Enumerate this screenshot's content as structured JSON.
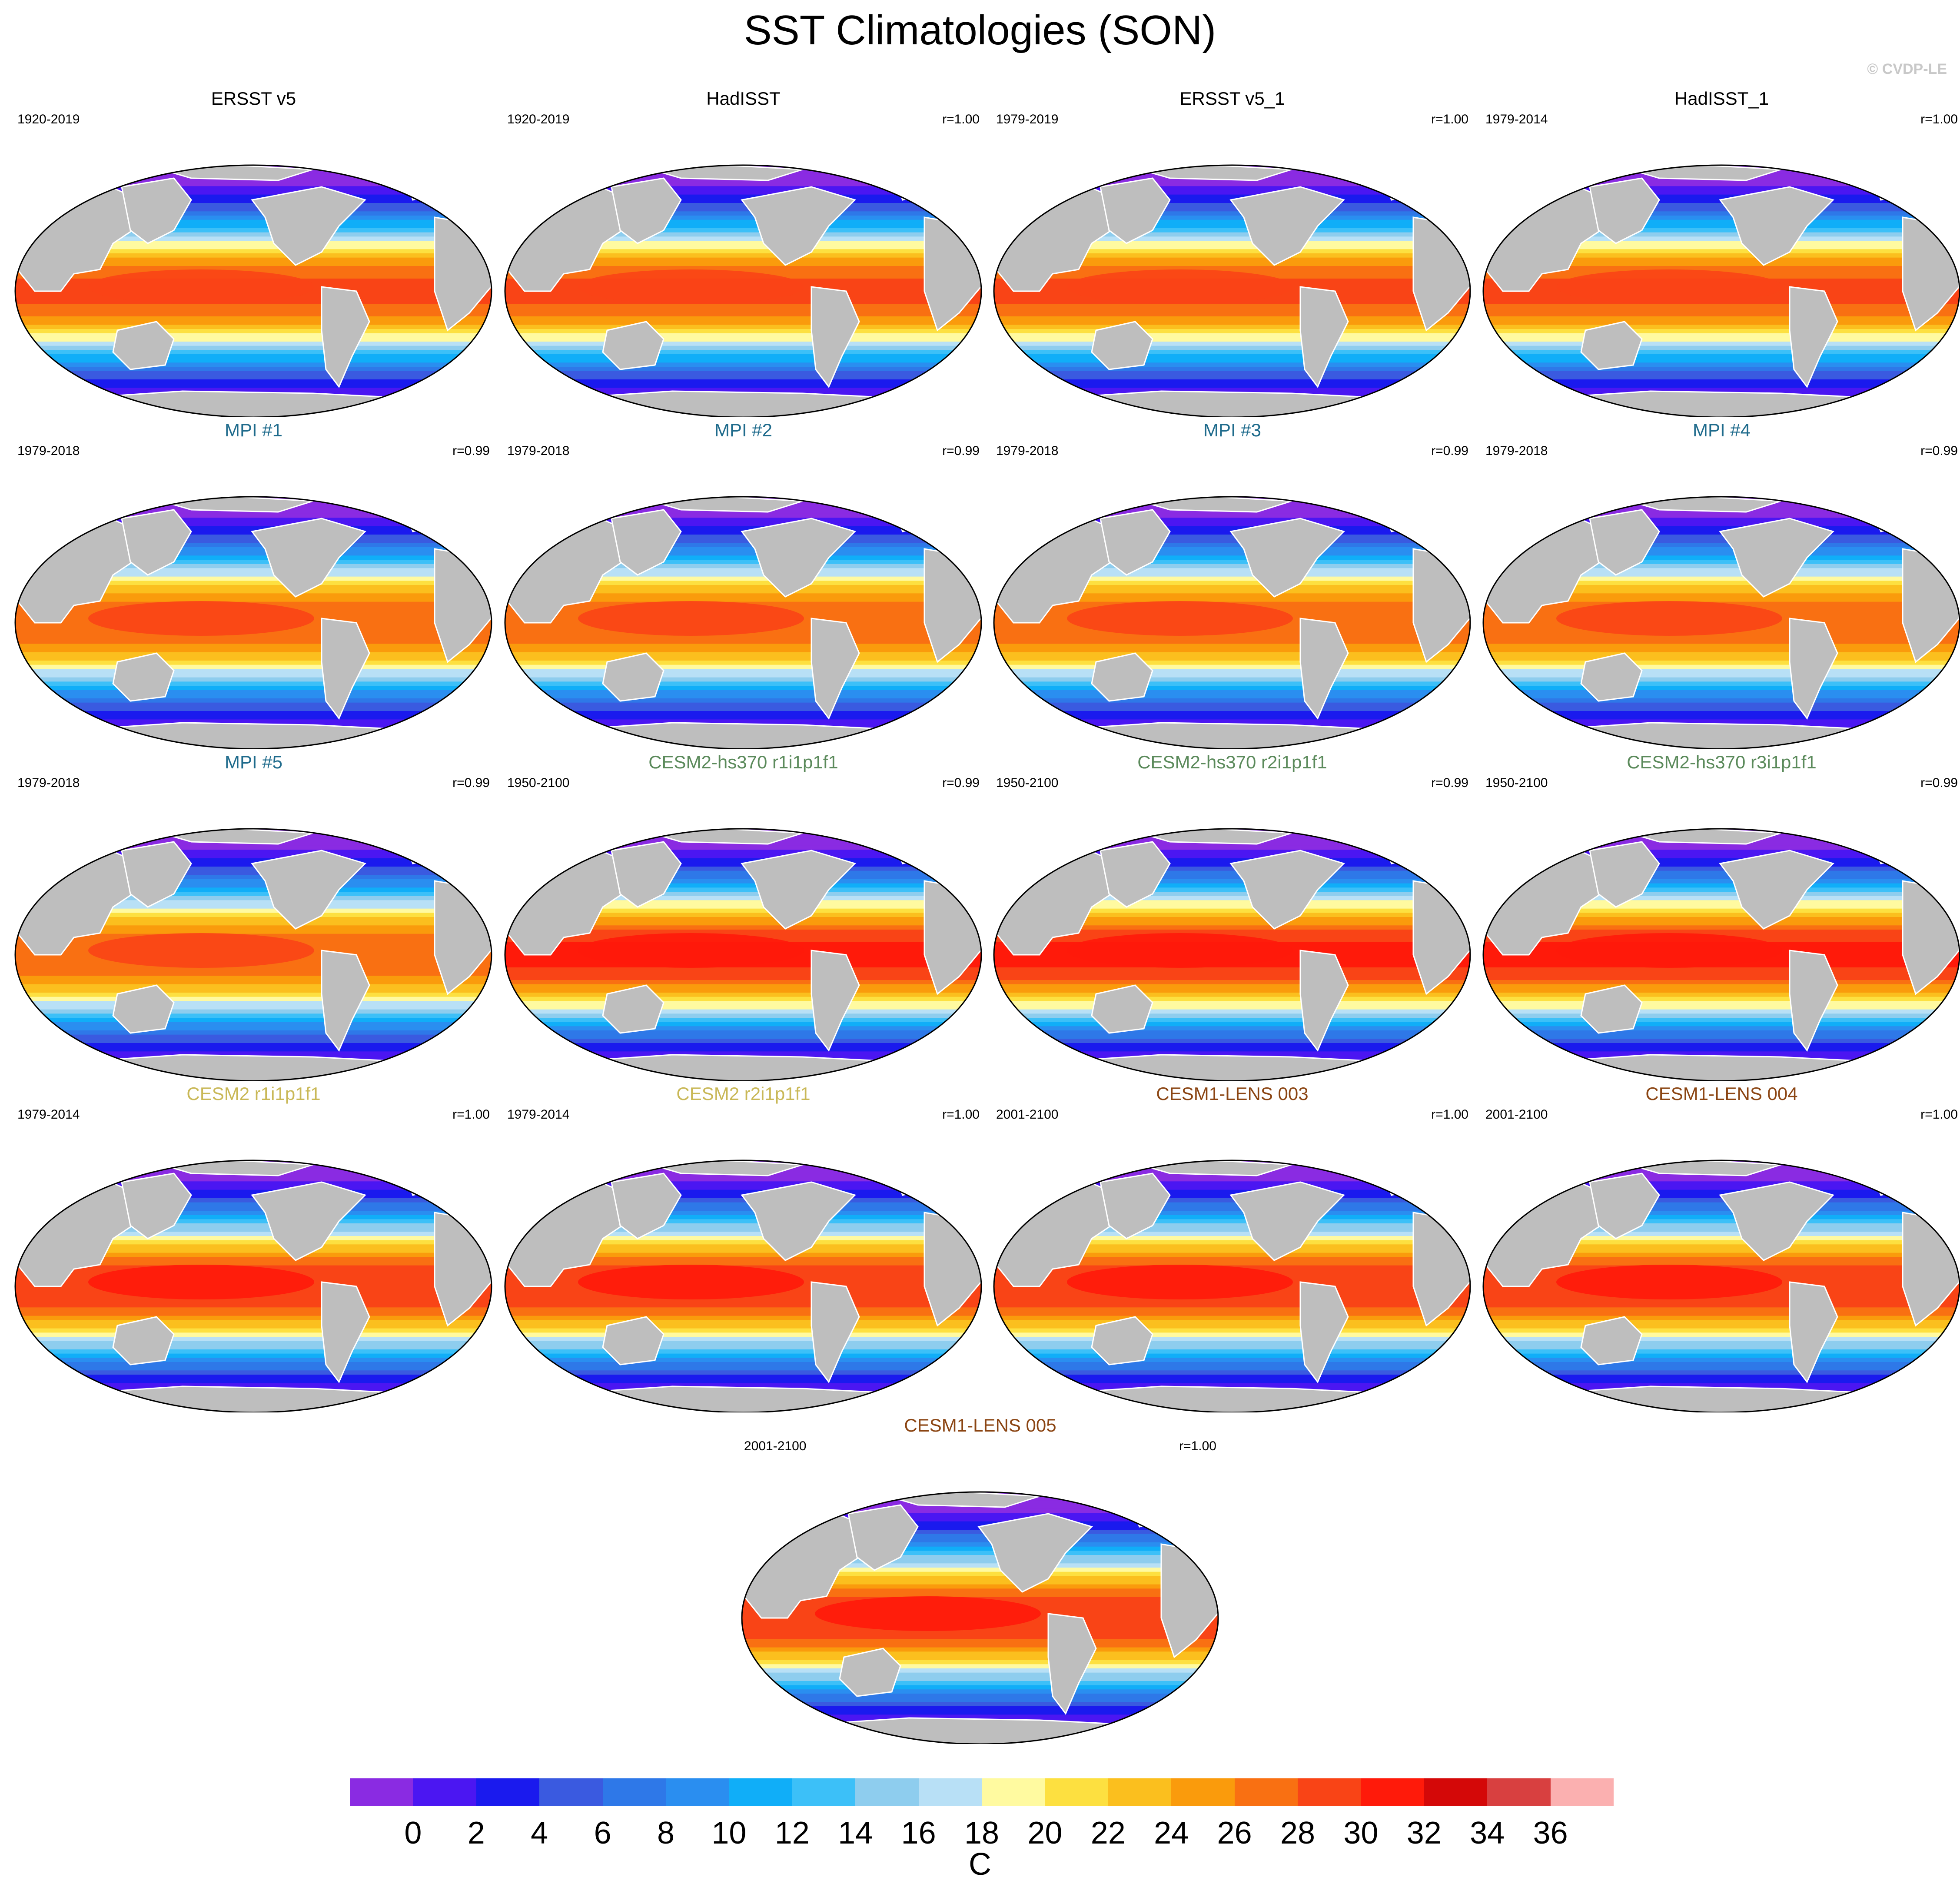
{
  "figure": {
    "title": "SST Climatologies (SON)",
    "credit": "© CVDP-LE"
  },
  "panels": [
    {
      "title": "ERSST v5",
      "years": "1920-2019",
      "corr": "",
      "title_color": "#000000",
      "tropical_max": 29
    },
    {
      "title": "HadISST",
      "years": "1920-2019",
      "corr": "r=1.00",
      "title_color": "#000000",
      "tropical_max": 29
    },
    {
      "title": "ERSST v5_1",
      "years": "1979-2019",
      "corr": "r=1.00",
      "title_color": "#000000",
      "tropical_max": 29
    },
    {
      "title": "HadISST_1",
      "years": "1979-2014",
      "corr": "r=1.00",
      "title_color": "#000000",
      "tropical_max": 29
    },
    {
      "title": "MPI #1",
      "years": "1979-2018",
      "corr": "r=0.99",
      "title_color": "#1f6b8c",
      "tropical_max": 28
    },
    {
      "title": "MPI #2",
      "years": "1979-2018",
      "corr": "r=0.99",
      "title_color": "#1f6b8c",
      "tropical_max": 28
    },
    {
      "title": "MPI #3",
      "years": "1979-2018",
      "corr": "r=0.99",
      "title_color": "#1f6b8c",
      "tropical_max": 28
    },
    {
      "title": "MPI #4",
      "years": "1979-2018",
      "corr": "r=0.99",
      "title_color": "#1f6b8c",
      "tropical_max": 28
    },
    {
      "title": "MPI #5",
      "years": "1979-2018",
      "corr": "r=0.99",
      "title_color": "#1f6b8c",
      "tropical_max": 28
    },
    {
      "title": "CESM2-hs370 r1i1p1f1",
      "years": "1950-2100",
      "corr": "r=0.99",
      "title_color": "#5b8a5b",
      "tropical_max": 31
    },
    {
      "title": "CESM2-hs370 r2i1p1f1",
      "years": "1950-2100",
      "corr": "r=0.99",
      "title_color": "#5b8a5b",
      "tropical_max": 31
    },
    {
      "title": "CESM2-hs370 r3i1p1f1",
      "years": "1950-2100",
      "corr": "r=0.99",
      "title_color": "#5b8a5b",
      "tropical_max": 31
    },
    {
      "title": "CESM2 r1i1p1f1",
      "years": "1979-2014",
      "corr": "r=1.00",
      "title_color": "#c9b857",
      "tropical_max": 30
    },
    {
      "title": "CESM2 r2i1p1f1",
      "years": "1979-2014",
      "corr": "r=1.00",
      "title_color": "#c9b857",
      "tropical_max": 30
    },
    {
      "title": "CESM1-LENS 003",
      "years": "2001-2100",
      "corr": "r=1.00",
      "title_color": "#8b4513",
      "tropical_max": 30
    },
    {
      "title": "CESM1-LENS 004",
      "years": "2001-2100",
      "corr": "r=1.00",
      "title_color": "#8b4513",
      "tropical_max": 30
    },
    {
      "title": "CESM1-LENS 005",
      "years": "2001-2100",
      "corr": "r=1.00",
      "title_color": "#8b4513",
      "tropical_max": 30
    }
  ],
  "colorbar": {
    "unit": "C",
    "labels": [
      "0",
      "2",
      "4",
      "6",
      "8",
      "10",
      "12",
      "14",
      "16",
      "18",
      "20",
      "22",
      "24",
      "26",
      "28",
      "30",
      "32",
      "34",
      "36"
    ],
    "colors": [
      "#8a2be2",
      "#4b16f2",
      "#1a1aee",
      "#3a5ae0",
      "#2e78e8",
      "#2a8ef0",
      "#10aef8",
      "#3cc0f8",
      "#8ecdee",
      "#b8e0f6",
      "#fffaa0",
      "#fde040",
      "#fbbf1e",
      "#fa9b0c",
      "#f97012",
      "#f94416",
      "#ff1a0a",
      "#d40808",
      "#d84040",
      "#fbb0b0"
    ]
  },
  "land_color": "#bebebe"
}
